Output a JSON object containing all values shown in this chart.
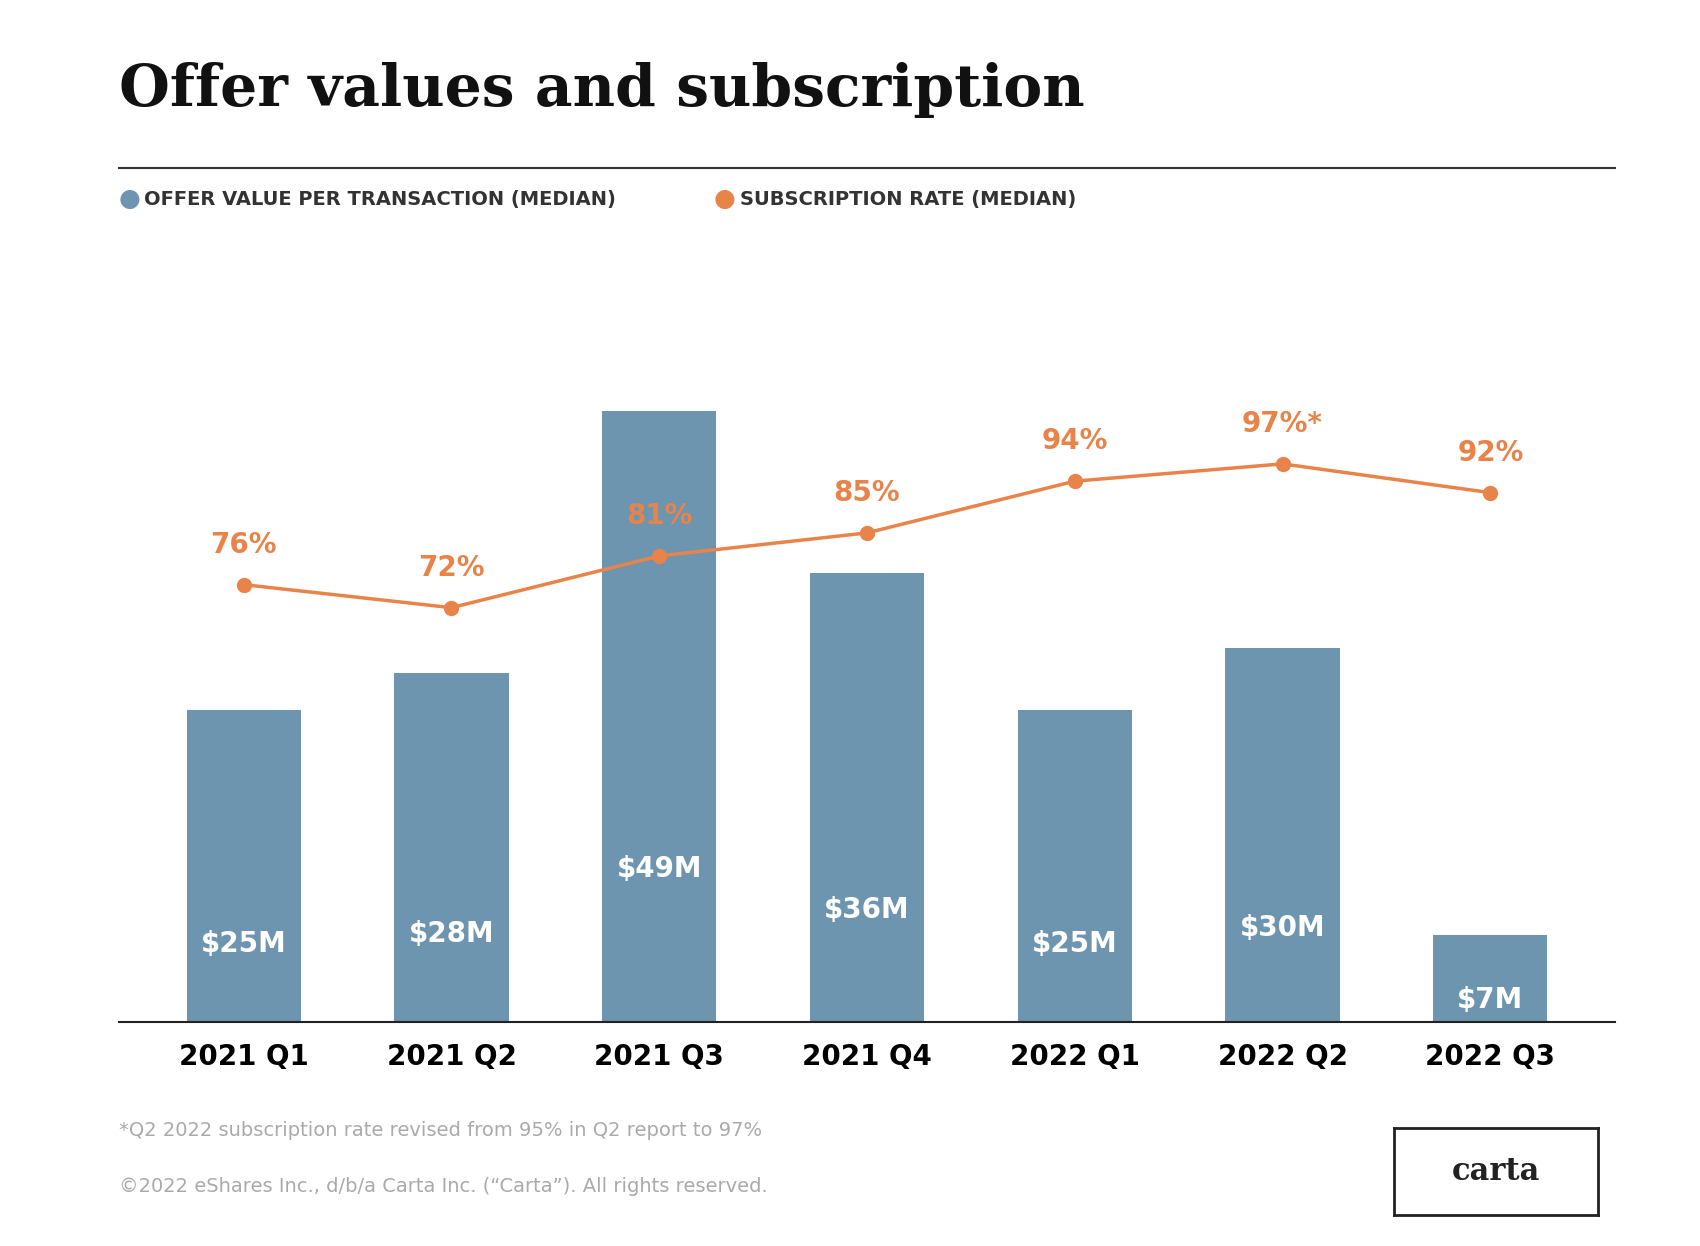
{
  "title": "Offer values and subscription",
  "categories": [
    "2021 Q1",
    "2021 Q2",
    "2021 Q3",
    "2021 Q4",
    "2022 Q1",
    "2022 Q2",
    "2022 Q3"
  ],
  "bar_values": [
    25,
    28,
    49,
    36,
    25,
    30,
    7
  ],
  "bar_labels": [
    "$25M",
    "$28M",
    "$49M",
    "$36M",
    "$25M",
    "$30M",
    "$7M"
  ],
  "bar_label_inside": [
    true,
    true,
    true,
    true,
    true,
    true,
    true
  ],
  "subscription_rates": [
    76,
    72,
    81,
    85,
    94,
    97,
    92
  ],
  "subscription_labels": [
    "76%",
    "72%",
    "81%",
    "85%",
    "94%",
    "97%*",
    "92%"
  ],
  "bar_color": "#6d95b0",
  "line_color": "#e8834a",
  "bar_label_color": "#ffffff",
  "bar_label_fontsize": 20,
  "subscription_label_color": "#e8834a",
  "subscription_label_fontsize": 20,
  "title_fontsize": 42,
  "legend_fontsize": 14,
  "tick_fontsize": 20,
  "legend_bar_label": "OFFER VALUE PER TRANSACTION (MEDIAN)",
  "legend_line_label": "SUBSCRIPTION RATE (MEDIAN)",
  "footnote1": "*Q2 2022 subscription rate revised from 95% in Q2 report to 97%",
  "footnote2": "©2022 eShares Inc., d/b/a Carta Inc. (“Carta”). All rights reserved.",
  "footnote_color": "#aaaaaa",
  "footnote_fontsize": 14,
  "background_color": "#ffffff",
  "ylim_bar": [
    0,
    60
  ],
  "ylim_rate": [
    60,
    110
  ],
  "carta_box_text": "carta"
}
